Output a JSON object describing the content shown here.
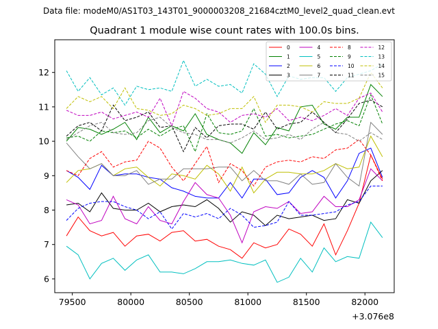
{
  "header": "Data file: modeM0/AS1T03_143T01_9000003208_21684cztM0_level2_quad_clean.evt",
  "chart_data": {
    "type": "line",
    "title": "Quadrant 1 module wise count rates with 100.0s bins.",
    "xlabel": "",
    "ylabel": "",
    "x_offset_label": "+3.076e8",
    "xlim": [
      79350,
      82250
    ],
    "ylim": [
      5.6,
      12.95
    ],
    "xticks": [
      79500,
      80000,
      80500,
      81000,
      81500,
      82000
    ],
    "xtick_labels": [
      "79500",
      "80000",
      "80500",
      "81000",
      "81500",
      "82000"
    ],
    "yticks": [
      6,
      7,
      8,
      9,
      10,
      11,
      12
    ],
    "ytick_labels": [
      "6",
      "7",
      "8",
      "9",
      "10",
      "11",
      "12"
    ],
    "grid": false,
    "legend_position": "top-right",
    "legend_columns": 4,
    "x": [
      79450,
      79550,
      79650,
      79750,
      79850,
      79950,
      80050,
      80150,
      80250,
      80350,
      80450,
      80550,
      80650,
      80750,
      80850,
      80950,
      81050,
      81150,
      81250,
      81350,
      81450,
      81550,
      81650,
      81750,
      81850,
      81950,
      82050,
      82150
    ],
    "series": [
      {
        "name": "0",
        "color": "#ff0000",
        "dash": "solid",
        "values": [
          7.25,
          7.8,
          7.4,
          7.25,
          7.35,
          6.95,
          7.25,
          7.3,
          7.1,
          7.35,
          7.4,
          7.1,
          7.15,
          6.95,
          6.85,
          6.6,
          7.05,
          6.9,
          7.0,
          7.45,
          7.3,
          6.95,
          7.6,
          6.7,
          7.4,
          8.2,
          9.6,
          8.9
        ]
      },
      {
        "name": "1",
        "color": "#008000",
        "dash": "solid",
        "values": [
          10.0,
          10.4,
          10.35,
          10.2,
          10.35,
          10.55,
          10.05,
          10.7,
          10.25,
          10.45,
          10.3,
          10.8,
          10.2,
          10.05,
          9.95,
          9.65,
          10.25,
          9.9,
          10.4,
          10.3,
          11.0,
          11.05,
          10.5,
          10.35,
          10.7,
          10.7,
          11.65,
          11.3
        ]
      },
      {
        "name": "2",
        "color": "#0000ff",
        "dash": "solid",
        "values": [
          9.15,
          8.95,
          8.6,
          9.3,
          9.0,
          9.05,
          9.05,
          8.95,
          8.9,
          8.65,
          8.55,
          8.4,
          8.35,
          8.35,
          8.8,
          8.35,
          8.9,
          8.9,
          8.45,
          8.5,
          8.95,
          9.15,
          8.95,
          8.35,
          8.85,
          9.65,
          9.8,
          8.95
        ]
      },
      {
        "name": "3",
        "color": "#000000",
        "dash": "solid",
        "values": [
          8.15,
          8.2,
          7.95,
          8.5,
          8.05,
          8.0,
          8.0,
          8.2,
          7.95,
          8.1,
          8.15,
          8.1,
          8.3,
          8.05,
          7.65,
          7.95,
          7.85,
          7.55,
          7.85,
          7.75,
          7.8,
          7.85,
          7.7,
          7.75,
          8.3,
          8.2,
          8.85,
          9.15
        ]
      },
      {
        "name": "4",
        "color": "#bf00bf",
        "dash": "solid",
        "values": [
          8.3,
          8.15,
          7.6,
          7.7,
          8.4,
          7.75,
          7.6,
          8.1,
          7.7,
          7.6,
          8.25,
          8.8,
          8.45,
          8.35,
          7.85,
          7.05,
          7.95,
          8.1,
          8.05,
          8.25,
          7.9,
          7.95,
          8.4,
          8.1,
          8.1,
          8.3,
          9.2,
          8.85
        ]
      },
      {
        "name": "5",
        "color": "#00bfbf",
        "dash": "solid",
        "values": [
          6.95,
          6.7,
          6.0,
          6.45,
          6.6,
          6.25,
          6.55,
          6.7,
          6.2,
          6.2,
          6.15,
          6.3,
          6.5,
          6.5,
          6.55,
          6.45,
          6.4,
          6.55,
          5.9,
          6.05,
          6.6,
          6.2,
          6.9,
          6.5,
          6.65,
          6.6,
          7.65,
          7.2
        ]
      },
      {
        "name": "6",
        "color": "#bfbf00",
        "dash": "solid",
        "values": [
          8.8,
          9.15,
          9.2,
          9.35,
          9.0,
          9.2,
          9.25,
          8.95,
          8.7,
          9.05,
          9.0,
          8.9,
          9.3,
          9.05,
          8.55,
          9.25,
          8.5,
          8.9,
          9.1,
          9.1,
          9.05,
          9.05,
          9.15,
          9.35,
          9.2,
          9.25,
          10.15,
          9.55
        ]
      },
      {
        "name": "7",
        "color": "#808080",
        "dash": "solid",
        "values": [
          9.95,
          9.55,
          9.2,
          9.35,
          9.0,
          9.0,
          9.15,
          8.75,
          8.9,
          8.9,
          9.2,
          9.2,
          9.2,
          9.25,
          9.25,
          8.85,
          9.15,
          8.85,
          8.85,
          8.75,
          9.05,
          8.75,
          8.8,
          9.35,
          8.95,
          8.7,
          10.55,
          10.2
        ]
      },
      {
        "name": "8",
        "color": "#ff0000",
        "dash": "dashed",
        "values": [
          9.15,
          9.0,
          9.5,
          9.7,
          9.25,
          9.4,
          9.45,
          10.0,
          9.8,
          9.25,
          8.85,
          9.35,
          9.85,
          8.8,
          9.35,
          9.15,
          8.7,
          9.25,
          9.4,
          9.45,
          9.4,
          9.55,
          9.5,
          9.75,
          9.8,
          10.05,
          9.6,
          8.85
        ]
      },
      {
        "name": "9",
        "color": "#008000",
        "dash": "dashed",
        "values": [
          10.1,
          10.15,
          10.0,
          10.3,
          10.25,
          10.3,
          10.1,
          10.35,
          10.15,
          10.35,
          10.45,
          9.7,
          10.8,
          10.25,
          10.2,
          10.3,
          10.95,
          10.15,
          10.2,
          10.1,
          10.15,
          10.2,
          10.35,
          10.5,
          10.6,
          10.45,
          11.35,
          10.5
        ]
      },
      {
        "name": "10",
        "color": "#0000ff",
        "dash": "dashed",
        "values": [
          7.7,
          8.05,
          8.2,
          8.25,
          8.25,
          8.1,
          8.0,
          7.75,
          7.95,
          7.45,
          7.9,
          7.8,
          7.9,
          7.75,
          8.05,
          7.85,
          7.5,
          7.55,
          7.65,
          8.25,
          7.85,
          7.85,
          7.9,
          7.95,
          8.15,
          8.25,
          8.7,
          8.7
        ]
      },
      {
        "name": "11",
        "color": "#000000",
        "dash": "dashed",
        "values": [
          10.15,
          10.45,
          10.55,
          10.3,
          11.05,
          10.6,
          10.7,
          10.85,
          10.4,
          10.45,
          9.7,
          10.4,
          10.1,
          10.45,
          10.5,
          10.5,
          10.35,
          10.85,
          10.35,
          10.5,
          10.55,
          10.85,
          10.55,
          10.25,
          10.65,
          11.1,
          11.2,
          11.0
        ]
      },
      {
        "name": "12",
        "color": "#bf00bf",
        "dash": "dashed",
        "values": [
          10.9,
          10.75,
          10.75,
          10.85,
          10.65,
          10.75,
          10.85,
          10.7,
          11.25,
          10.45,
          11.45,
          11.25,
          10.95,
          10.85,
          10.55,
          10.75,
          10.8,
          10.7,
          10.95,
          10.6,
          10.7,
          10.6,
          10.75,
          10.95,
          10.75,
          11.25,
          11.4,
          10.85
        ]
      },
      {
        "name": "13",
        "color": "#00bfbf",
        "dash": "dashed",
        "values": [
          12.05,
          11.45,
          11.85,
          11.35,
          11.55,
          11.05,
          11.6,
          11.5,
          11.55,
          11.45,
          12.35,
          11.6,
          11.8,
          11.6,
          11.65,
          11.4,
          12.25,
          11.95,
          11.3,
          11.9,
          11.8,
          11.85,
          11.85,
          11.45,
          11.85,
          11.95,
          12.05,
          12.25
        ]
      },
      {
        "name": "14",
        "color": "#bfbf00",
        "dash": "dashed",
        "values": [
          10.95,
          11.3,
          11.15,
          11.3,
          10.95,
          11.55,
          10.95,
          10.9,
          10.75,
          10.8,
          11.05,
          10.95,
          10.75,
          10.8,
          10.95,
          10.95,
          11.3,
          10.55,
          11.05,
          11.05,
          11.0,
          10.85,
          11.15,
          11.1,
          11.1,
          11.25,
          12.0,
          11.55
        ]
      },
      {
        "name": "15",
        "color": "#808080",
        "dash": "dashed",
        "values": [
          10.05,
          10.25,
          10.45,
          10.55,
          10.25,
          10.2,
          10.25,
          10.6,
          10.7,
          10.4,
          10.25,
          10.2,
          10.05,
          10.05,
          9.95,
          10.1,
          10.3,
          10.05,
          10.1,
          10.2,
          10.05,
          10.35,
          10.55,
          10.25,
          10.2,
          10.0,
          10.25,
          10.05
        ]
      }
    ]
  }
}
